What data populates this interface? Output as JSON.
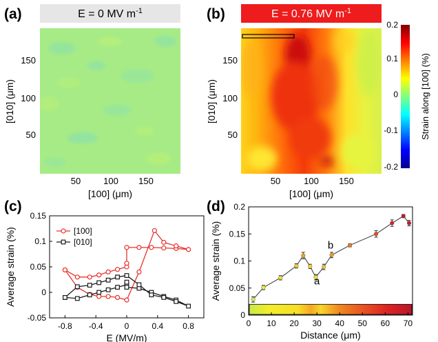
{
  "panels": {
    "a": {
      "label": "(a)",
      "banner": {
        "text": "E = 0 MV m",
        "superscript": "-1",
        "color": "#e6e6e6",
        "text_color": "#000000"
      },
      "xlabel": "[100] (μm)",
      "ylabel": "[010] (μm)",
      "xticks": [
        "50",
        "100",
        "150"
      ],
      "yticks": [
        "50",
        "100",
        "150"
      ]
    },
    "b": {
      "label": "(b)",
      "banner": {
        "text": "E = 0.76 MV m",
        "superscript": "-1",
        "color": "#ee1c1c",
        "text_color": "#ffffff"
      },
      "xlabel": "[100] (μm)",
      "ylabel": "[010] (μm)",
      "xticks": [
        "50",
        "100",
        "150"
      ],
      "yticks": [
        "50",
        "100",
        "150"
      ]
    },
    "colorbar": {
      "label": "Strain along [100] (%)",
      "ticks": [
        "0.2",
        "0.1",
        "0",
        "-0.1",
        "-0.2"
      ]
    },
    "c": {
      "label": "(c)"
    },
    "d": {
      "label": "(d)"
    }
  },
  "chart_data": [
    {
      "panel": "a",
      "type": "heatmap",
      "title": "E = 0 MV m-1",
      "xlabel": "[100] (μm)",
      "ylabel": "[010] (μm)",
      "xlim": [
        0,
        200
      ],
      "ylim": [
        0,
        200
      ],
      "colorbar_range": [
        -0.2,
        0.2
      ],
      "description_value": 0.02
    },
    {
      "panel": "b",
      "type": "heatmap",
      "title": "E = 0.76 MV m-1",
      "xlabel": "[100] (μm)",
      "ylabel": "[010] (μm)",
      "xlim": [
        0,
        200
      ],
      "ylim": [
        0,
        200
      ],
      "colorbar_range": [
        -0.2,
        0.2
      ]
    },
    {
      "panel": "c",
      "type": "line",
      "xlabel": "E (MV/m)",
      "ylabel": "Average strain (%)",
      "xlim": [
        -1.0,
        1.0
      ],
      "ylim": [
        -0.05,
        0.15
      ],
      "xticks": [
        -0.8,
        -0.4,
        0,
        0.4,
        0.8
      ],
      "xtick_labels": [
        "-0.8",
        "-0.4",
        "0",
        "0.4",
        "0.8"
      ],
      "yticks": [
        -0.05,
        0,
        0.05,
        0.1,
        0.15
      ],
      "ytick_labels": [
        "-0.05",
        "0",
        "0.05",
        "0.1",
        "0.15"
      ],
      "legend": "top-left",
      "series": [
        {
          "name": "[100]",
          "color": "#e8302a",
          "marker": "circle",
          "points": [
            [
              -0.8,
              0.044
            ],
            [
              -0.64,
              0.03
            ],
            [
              -0.48,
              0.03
            ],
            [
              -0.36,
              0.034
            ],
            [
              -0.24,
              0.04
            ],
            [
              -0.12,
              0.045
            ],
            [
              0.0,
              0.05
            ],
            [
              0.0,
              0.057
            ],
            [
              0.0,
              0.088
            ],
            [
              0.16,
              0.088
            ],
            [
              0.32,
              0.088
            ],
            [
              0.48,
              0.087
            ],
            [
              0.64,
              0.086
            ],
            [
              0.8,
              0.084
            ],
            [
              0.64,
              0.091
            ],
            [
              0.48,
              0.098
            ],
            [
              0.36,
              0.121
            ],
            [
              0.16,
              0.04
            ],
            [
              0.0,
              -0.015
            ],
            [
              -0.12,
              -0.01
            ],
            [
              -0.24,
              -0.008
            ],
            [
              -0.36,
              -0.008
            ],
            [
              -0.48,
              -0.004
            ],
            [
              -0.64,
              0.01
            ],
            [
              -0.8,
              0.044
            ]
          ]
        },
        {
          "name": "[010]",
          "color": "#1a1a1a",
          "marker": "square",
          "points": [
            [
              -0.8,
              -0.01
            ],
            [
              -0.64,
              -0.012
            ],
            [
              -0.48,
              -0.005
            ],
            [
              -0.36,
              0.0
            ],
            [
              -0.24,
              0.005
            ],
            [
              -0.12,
              0.01
            ],
            [
              0.0,
              0.015
            ],
            [
              0.0,
              0.02
            ],
            [
              0.0,
              0.01
            ],
            [
              0.16,
              0.008
            ],
            [
              0.32,
              0.0
            ],
            [
              0.48,
              -0.008
            ],
            [
              0.64,
              -0.015
            ],
            [
              0.8,
              -0.027
            ],
            [
              0.64,
              -0.018
            ],
            [
              0.48,
              -0.01
            ],
            [
              0.32,
              -0.005
            ],
            [
              0.16,
              0.015
            ],
            [
              0.0,
              0.033
            ],
            [
              -0.12,
              0.03
            ],
            [
              -0.24,
              0.024
            ],
            [
              -0.36,
              0.019
            ],
            [
              -0.48,
              0.014
            ],
            [
              -0.64,
              0.011
            ],
            [
              -0.8,
              -0.01
            ]
          ]
        }
      ]
    },
    {
      "panel": "d",
      "type": "line",
      "xlabel": "Distance (μm)",
      "ylabel": "Average strain (%)",
      "xlim": [
        0,
        72
      ],
      "ylim": [
        0,
        0.2
      ],
      "xticks": [
        0,
        10,
        20,
        30,
        40,
        50,
        60,
        70
      ],
      "xtick_labels": [
        "0",
        "10",
        "20",
        "30",
        "40",
        "50",
        "60",
        "70"
      ],
      "yticks": [
        0,
        0.05,
        0.1,
        0.15,
        0.2
      ],
      "ytick_labels": [
        "0",
        "0.05",
        "0.1",
        "0.15",
        "0.2"
      ],
      "annotations": [
        {
          "text": "a",
          "x": 30,
          "y": 0.057
        },
        {
          "text": "b",
          "x": 36,
          "y": 0.123
        }
      ],
      "series": [
        {
          "points": [
            [
              2,
              0.029
            ],
            [
              6.5,
              0.051
            ],
            [
              14,
              0.069
            ],
            [
              21,
              0.091
            ],
            [
              24,
              0.11
            ],
            [
              27,
              0.09
            ],
            [
              29.5,
              0.07
            ],
            [
              33,
              0.089
            ],
            [
              36.5,
              0.111
            ],
            [
              44.5,
              0.129
            ],
            [
              56,
              0.15
            ],
            [
              63,
              0.17
            ],
            [
              68,
              0.183
            ],
            [
              70.5,
              0.17
            ]
          ],
          "errors": [
            0.005,
            0.004,
            0.004,
            0.004,
            0.006,
            0.004,
            0.005,
            0.005,
            0.005,
            0.003,
            0.006,
            0.006,
            0.003,
            0.005
          ],
          "point_colors": [
            "#d8e840",
            "#f0ee30",
            "#f4e32a",
            "#f6cc28",
            "#f2a023",
            "#f6d42a",
            "#f8e02c",
            "#f6c728",
            "#f29a22",
            "#ec7a20",
            "#e84a20",
            "#dc1e24",
            "#c4142a",
            "#d01826"
          ]
        }
      ],
      "strain_strip": true
    }
  ]
}
